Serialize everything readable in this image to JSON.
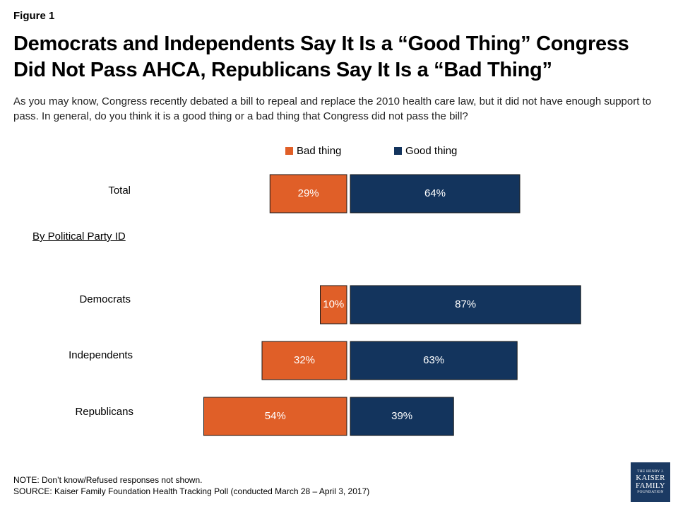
{
  "figure_label": "Figure 1",
  "title_line1": "Democrats and Independents Say It Is a “Good Thing” Congress",
  "title_line2": "Did Not Pass AHCA, Republicans Say It Is a “Bad Thing”",
  "subtitle": "As you may know, Congress recently debated a bill to repeal and replace the 2010 health care law, but it did not have enough support to pass.  In general, do you think it is a good thing or a bad thing that Congress did not pass the bill?",
  "group_header": "By Political Party ID",
  "note": "NOTE: Don’t know/Refused responses not shown.",
  "source": "SOURCE: Kaiser Family Foundation Health Tracking Poll (conducted March 28 – April 3, 2017)",
  "logo": {
    "line1": "THE HENRY J.",
    "line2": "KAISER",
    "line3": "FAMILY",
    "line4": "FOUNDATION"
  },
  "colors": {
    "bad": "#e05f28",
    "good": "#13345d",
    "bar_outline": "#1a1a1a"
  },
  "chart_data": {
    "type": "bar",
    "orientation": "horizontal-diverging",
    "categories": [
      "Total",
      "Democrats",
      "Independents",
      "Republicans"
    ],
    "series": [
      {
        "name": "Bad thing",
        "values": [
          29,
          10,
          32,
          54
        ],
        "labels": [
          "29%",
          "10%",
          "32%",
          "54%"
        ]
      },
      {
        "name": "Good thing",
        "values": [
          64,
          87,
          63,
          39
        ],
        "labels": [
          "64%",
          "87%",
          "63%",
          "39%"
        ]
      }
    ],
    "unit": "%",
    "legend_position": "top-center",
    "grid": false
  }
}
